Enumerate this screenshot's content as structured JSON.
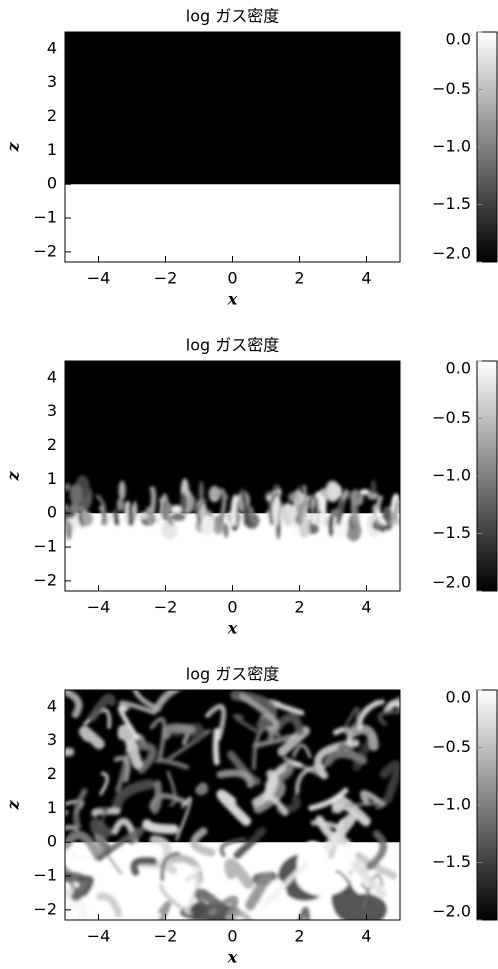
{
  "chart_data": [
    {
      "type": "image",
      "title": "log ガス密度",
      "xlabel": "x",
      "ylabel": "z",
      "xlim": [
        -5,
        5
      ],
      "ylim": [
        -2.3,
        4.5
      ],
      "xticks": [
        {
          "value": -4,
          "label": "−4"
        },
        {
          "value": -2,
          "label": "−2"
        },
        0,
        2,
        4
      ],
      "yticks": [
        {
          "value": -2,
          "label": "−2"
        },
        {
          "value": -1,
          "label": "−1"
        },
        0,
        1,
        2,
        3,
        4
      ],
      "clim": [
        -2,
        0
      ],
      "cticks": [
        {
          "value": 0,
          "label": "0.0"
        },
        {
          "value": -0.5,
          "label": "−0.5"
        },
        {
          "value": -1,
          "label": "−1.0"
        },
        {
          "value": -1.5,
          "label": "−1.5"
        },
        {
          "value": -2,
          "label": "−2.0"
        }
      ],
      "cmap": [
        "#000000",
        "#ffffff"
      ]
    },
    {
      "type": "image",
      "title": "log ガス密度",
      "xlabel": "x",
      "ylabel": "z",
      "xlim": [
        -5,
        5
      ],
      "ylim": [
        -2.3,
        4.5
      ],
      "xticks": [
        {
          "value": -4,
          "label": "−4"
        },
        {
          "value": -2,
          "label": "−2"
        },
        0,
        2,
        4
      ],
      "yticks": [
        {
          "value": -2,
          "label": "−2"
        },
        {
          "value": -1,
          "label": "−1"
        },
        0,
        1,
        2,
        3,
        4
      ],
      "clim": [
        -2,
        0
      ],
      "cticks": [
        {
          "value": 0,
          "label": "0.0"
        },
        {
          "value": -0.5,
          "label": "−0.5"
        },
        {
          "value": -1,
          "label": "−1.0"
        },
        {
          "value": -1.5,
          "label": "−1.5"
        },
        {
          "value": -2,
          "label": "−2.0"
        }
      ],
      "cmap": [
        "#000000",
        "#ffffff"
      ]
    },
    {
      "type": "image",
      "title": "log ガス密度",
      "xlabel": "x",
      "ylabel": "z",
      "xlim": [
        -5,
        5
      ],
      "ylim": [
        -2.3,
        4.5
      ],
      "xticks": [
        {
          "value": -4,
          "label": "−4"
        },
        {
          "value": -2,
          "label": "−2"
        },
        0,
        2,
        4
      ],
      "yticks": [
        {
          "value": -2,
          "label": "−2"
        },
        {
          "value": -1,
          "label": "−1"
        },
        0,
        1,
        2,
        3,
        4
      ],
      "clim": [
        -2,
        0
      ],
      "cticks": [
        {
          "value": 0,
          "label": "0.0"
        },
        {
          "value": -0.5,
          "label": "−0.5"
        },
        {
          "value": -1,
          "label": "−1.0"
        },
        {
          "value": -1.5,
          "label": "−1.5"
        },
        {
          "value": -2,
          "label": "−2.0"
        }
      ],
      "cmap": [
        "#000000",
        "#ffffff"
      ]
    }
  ]
}
